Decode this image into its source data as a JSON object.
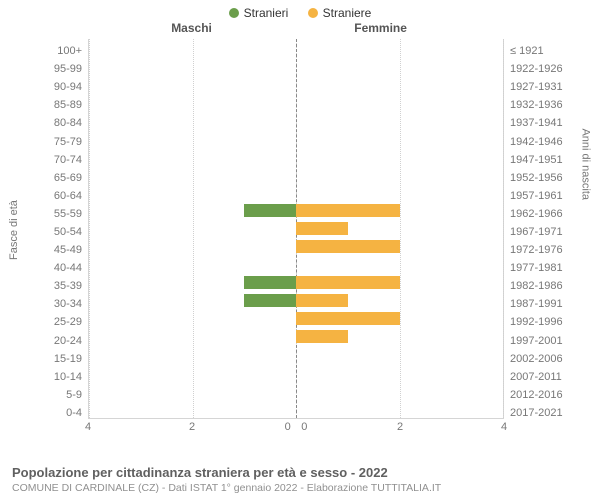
{
  "chart": {
    "type": "population-pyramid",
    "legend": [
      {
        "label": "Stranieri",
        "color": "#6b9e4b"
      },
      {
        "label": "Straniere",
        "color": "#f5b342"
      }
    ],
    "header_left": "Maschi",
    "header_right": "Femmine",
    "axis_left_title": "Fasce di età",
    "axis_right_title": "Anni di nascita",
    "x_max": 4,
    "x_ticks": [
      4,
      2,
      0,
      0,
      2,
      4
    ],
    "grid_color": "#d0d0d0",
    "axis_color": "#888888",
    "background_color": "#ffffff",
    "bar_colors": {
      "male": "#6b9e4b",
      "female": "#f5b342"
    },
    "label_fontsize": 11,
    "label_color": "#777777",
    "rows": [
      {
        "age": "100+",
        "birth": "≤ 1921",
        "m": 0,
        "f": 0
      },
      {
        "age": "95-99",
        "birth": "1922-1926",
        "m": 0,
        "f": 0
      },
      {
        "age": "90-94",
        "birth": "1927-1931",
        "m": 0,
        "f": 0
      },
      {
        "age": "85-89",
        "birth": "1932-1936",
        "m": 0,
        "f": 0
      },
      {
        "age": "80-84",
        "birth": "1937-1941",
        "m": 0,
        "f": 0
      },
      {
        "age": "75-79",
        "birth": "1942-1946",
        "m": 0,
        "f": 0
      },
      {
        "age": "70-74",
        "birth": "1947-1951",
        "m": 0,
        "f": 0
      },
      {
        "age": "65-69",
        "birth": "1952-1956",
        "m": 0,
        "f": 0
      },
      {
        "age": "60-64",
        "birth": "1957-1961",
        "m": 0,
        "f": 0
      },
      {
        "age": "55-59",
        "birth": "1962-1966",
        "m": 1,
        "f": 2
      },
      {
        "age": "50-54",
        "birth": "1967-1971",
        "m": 0,
        "f": 1
      },
      {
        "age": "45-49",
        "birth": "1972-1976",
        "m": 0,
        "f": 2
      },
      {
        "age": "40-44",
        "birth": "1977-1981",
        "m": 0,
        "f": 0
      },
      {
        "age": "35-39",
        "birth": "1982-1986",
        "m": 1,
        "f": 2
      },
      {
        "age": "30-34",
        "birth": "1987-1991",
        "m": 1,
        "f": 1
      },
      {
        "age": "25-29",
        "birth": "1992-1996",
        "m": 0,
        "f": 2
      },
      {
        "age": "20-24",
        "birth": "1997-2001",
        "m": 0,
        "f": 1
      },
      {
        "age": "15-19",
        "birth": "2002-2006",
        "m": 0,
        "f": 0
      },
      {
        "age": "10-14",
        "birth": "2007-2011",
        "m": 0,
        "f": 0
      },
      {
        "age": "5-9",
        "birth": "2012-2016",
        "m": 0,
        "f": 0
      },
      {
        "age": "0-4",
        "birth": "2017-2021",
        "m": 0,
        "f": 0
      }
    ]
  },
  "footer": {
    "title": "Popolazione per cittadinanza straniera per età e sesso - 2022",
    "subtitle": "COMUNE DI CARDINALE (CZ) - Dati ISTAT 1° gennaio 2022 - Elaborazione TUTTITALIA.IT"
  }
}
